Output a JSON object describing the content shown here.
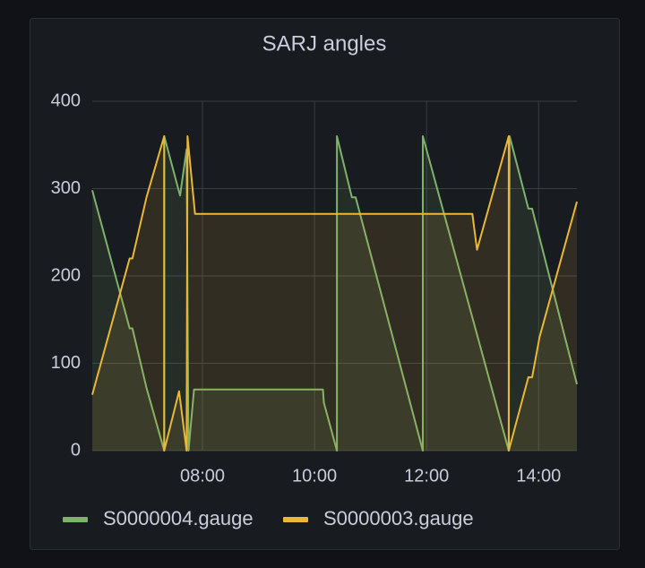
{
  "chart_data": {
    "type": "line",
    "title": "SARJ angles",
    "xlim": [
      362,
      881
    ],
    "xticks": [
      {
        "value": 480,
        "label": "08:00"
      },
      {
        "value": 600,
        "label": "10:00"
      },
      {
        "value": 720,
        "label": "12:00"
      },
      {
        "value": 840,
        "label": "14:00"
      }
    ],
    "ylim": [
      0,
      400
    ],
    "yticks": [
      0,
      100,
      200,
      300,
      400
    ],
    "grid": true,
    "legend": "bottom",
    "series": [
      {
        "name": "S0000004.gauge",
        "color": "#7eb26d",
        "x": [
          362,
          402,
          405,
          420,
          439,
          439,
          456,
          463,
          465,
          471,
          604,
          609,
          610,
          624,
          624,
          640,
          644,
          716,
          716,
          808,
          809,
          829,
          833,
          881
        ],
        "values": [
          298,
          140,
          140,
          72,
          0,
          360,
          292,
          345,
          0,
          70,
          70,
          70,
          55,
          0,
          360,
          290,
          290,
          0,
          360,
          0,
          360,
          277,
          277,
          76
        ]
      },
      {
        "name": "S0000003.gauge",
        "color": "#eab839",
        "x": [
          362,
          402,
          405,
          420,
          439,
          439,
          455,
          463,
          464,
          472,
          769,
          774,
          808,
          808,
          829,
          833,
          841,
          881
        ],
        "values": [
          64,
          220,
          220,
          290,
          360,
          0,
          68,
          0,
          360,
          271,
          271,
          230,
          360,
          0,
          84,
          84,
          130,
          285
        ]
      }
    ]
  }
}
